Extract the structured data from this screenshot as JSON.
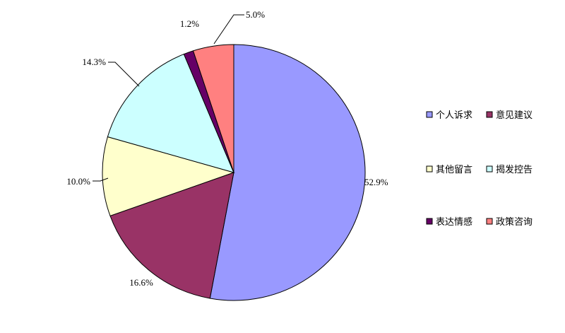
{
  "chart_data": {
    "type": "pie",
    "series": [
      {
        "name": "个人诉求",
        "value": 52.9,
        "label": "52.9%",
        "color": "#9999FF"
      },
      {
        "name": "意见建议",
        "value": 16.6,
        "label": "16.6%",
        "color": "#993366"
      },
      {
        "name": "其他留言",
        "value": 10.0,
        "label": "10.0%",
        "color": "#FFFFCC"
      },
      {
        "name": "揭发控告",
        "value": 14.3,
        "label": "14.3%",
        "color": "#CCFFFF"
      },
      {
        "name": "表达情感",
        "value": 1.2,
        "label": "1.2%",
        "color": "#660066"
      },
      {
        "name": "政策咨询",
        "value": 5.0,
        "label": "5.0%",
        "color": "#FF8080"
      }
    ],
    "legend_placement": "right",
    "start_angle": "top, clockwise"
  }
}
